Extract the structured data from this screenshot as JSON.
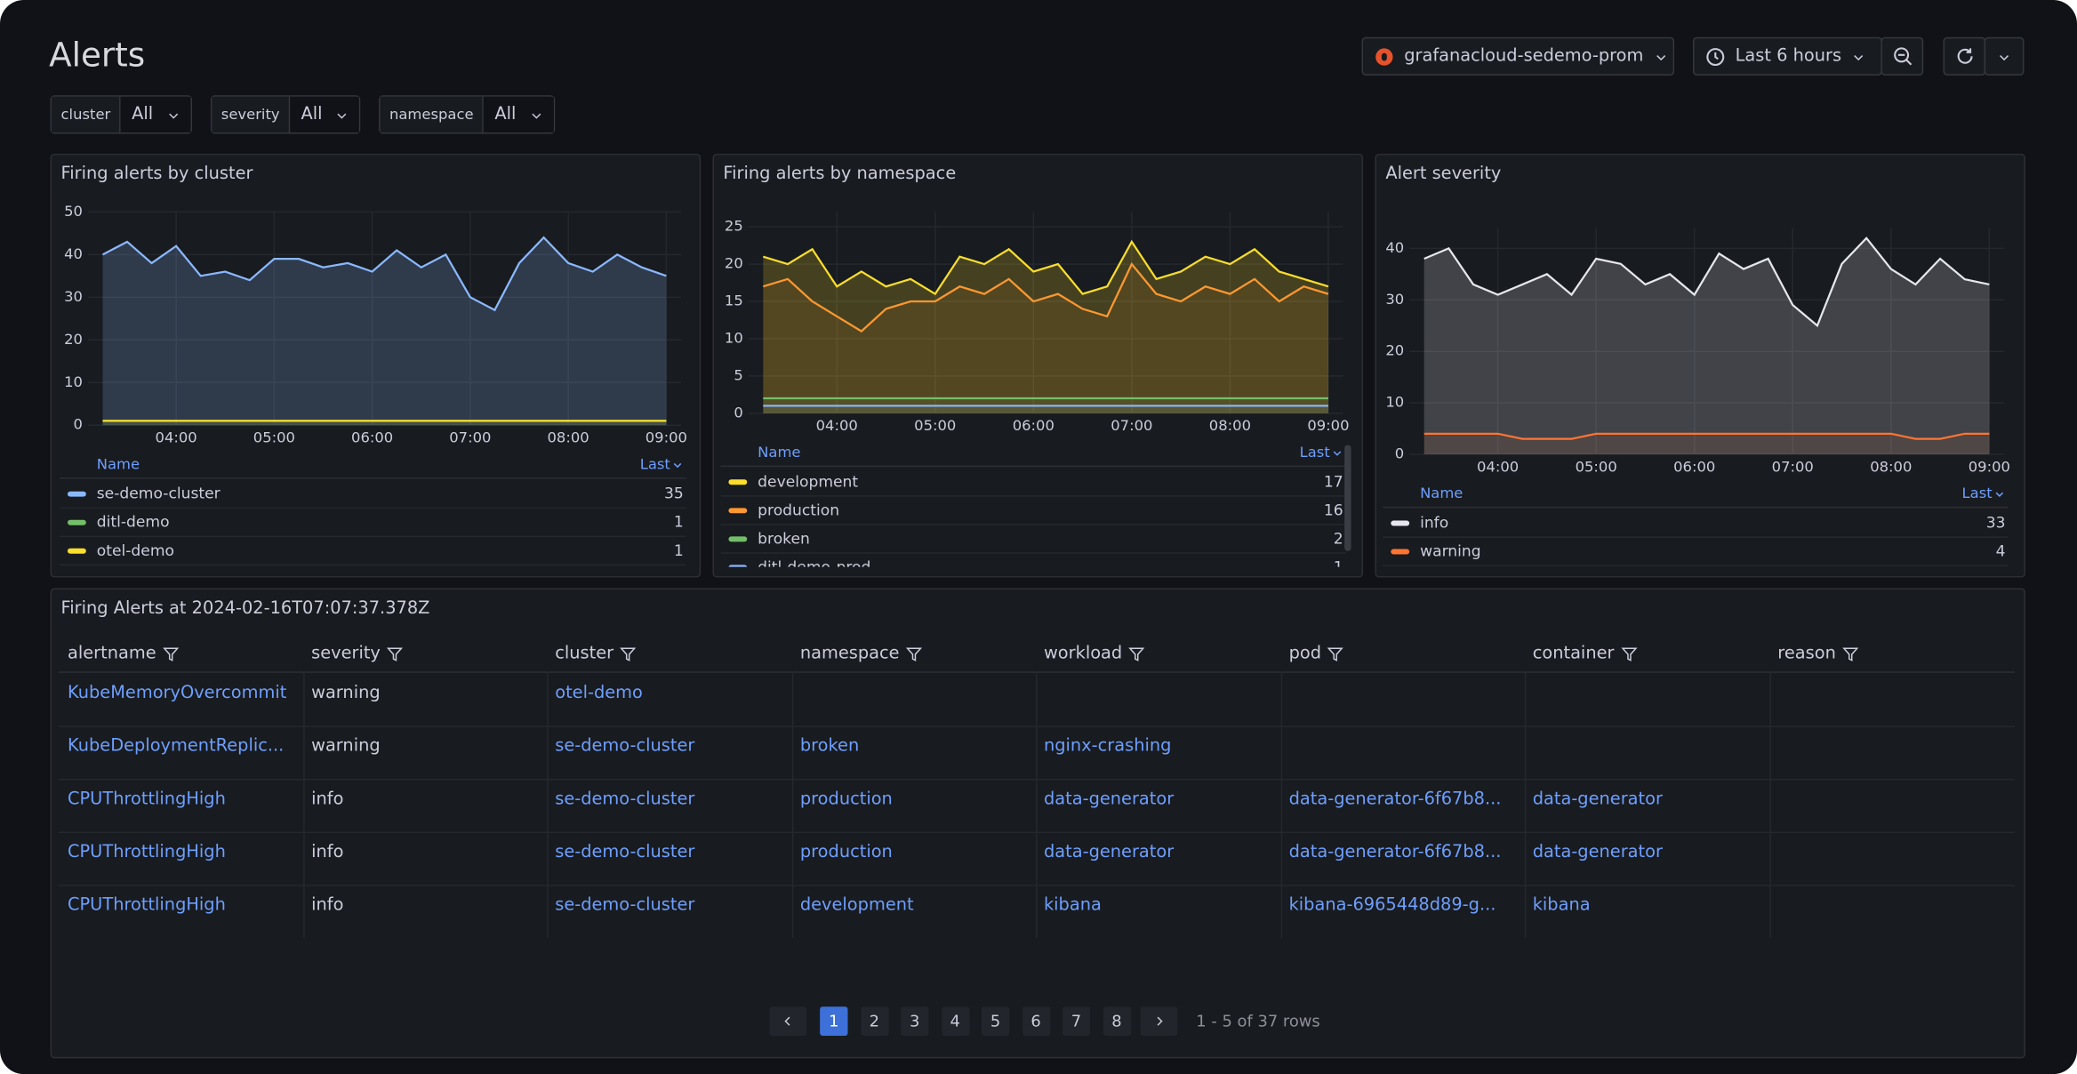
{
  "header": {
    "title": "Alerts",
    "datasource": "grafanacloud-sedemo-prom",
    "time_range": "Last 6 hours"
  },
  "filters": [
    {
      "label": "cluster",
      "value": "All"
    },
    {
      "label": "severity",
      "value": "All"
    },
    {
      "label": "namespace",
      "value": "All"
    }
  ],
  "chart_data": [
    {
      "type": "line",
      "title": "Firing alerts by cluster",
      "x": [
        "03:15",
        "03:30",
        "03:45",
        "04:00",
        "04:15",
        "04:30",
        "04:45",
        "05:00",
        "05:15",
        "05:30",
        "05:45",
        "06:00",
        "06:15",
        "06:30",
        "06:45",
        "07:00",
        "07:15",
        "07:30",
        "07:45",
        "08:00",
        "08:15",
        "08:30",
        "08:45",
        "09:00"
      ],
      "xticks": [
        "04:00",
        "05:00",
        "06:00",
        "07:00",
        "08:00",
        "09:00"
      ],
      "ylim": [
        0,
        50
      ],
      "yticks": [
        0,
        10,
        20,
        30,
        40,
        50
      ],
      "grid": true,
      "legend_columns": [
        "Name",
        "Last"
      ],
      "series": [
        {
          "name": "se-demo-cluster",
          "color": "#8ab8ff",
          "values": [
            40,
            43,
            38,
            42,
            35,
            36,
            34,
            39,
            39,
            37,
            38,
            36,
            41,
            37,
            40,
            30,
            27,
            38,
            44,
            38,
            36,
            40,
            37,
            35
          ]
        },
        {
          "name": "ditl-demo",
          "color": "#73bf69",
          "values": [
            1,
            1,
            1,
            1,
            1,
            1,
            1,
            1,
            1,
            1,
            1,
            1,
            1,
            1,
            1,
            1,
            1,
            1,
            1,
            1,
            1,
            1,
            1,
            1
          ]
        },
        {
          "name": "otel-demo",
          "color": "#fade2a",
          "values": [
            1,
            1,
            1,
            1,
            1,
            1,
            1,
            1,
            1,
            1,
            1,
            1,
            1,
            1,
            1,
            1,
            1,
            1,
            1,
            1,
            1,
            1,
            1,
            1
          ]
        }
      ]
    },
    {
      "type": "line",
      "title": "Firing alerts by namespace",
      "x": [
        "03:15",
        "03:30",
        "03:45",
        "04:00",
        "04:15",
        "04:30",
        "04:45",
        "05:00",
        "05:15",
        "05:30",
        "05:45",
        "06:00",
        "06:15",
        "06:30",
        "06:45",
        "07:00",
        "07:15",
        "07:30",
        "07:45",
        "08:00",
        "08:15",
        "08:30",
        "08:45",
        "09:00"
      ],
      "xticks": [
        "04:00",
        "05:00",
        "06:00",
        "07:00",
        "08:00",
        "09:00"
      ],
      "ylim": [
        0,
        27
      ],
      "yticks": [
        0,
        5,
        10,
        15,
        20,
        25
      ],
      "grid": true,
      "legend_columns": [
        "Name",
        "Last"
      ],
      "series": [
        {
          "name": "development",
          "color": "#fade2a",
          "values": [
            21,
            20,
            22,
            17,
            19,
            17,
            18,
            16,
            21,
            20,
            22,
            19,
            20,
            16,
            17,
            23,
            18,
            19,
            21,
            20,
            22,
            19,
            18,
            17
          ]
        },
        {
          "name": "production",
          "color": "#ff9830",
          "values": [
            17,
            18,
            15,
            13,
            11,
            14,
            15,
            15,
            17,
            16,
            18,
            15,
            16,
            14,
            13,
            20,
            16,
            15,
            17,
            16,
            18,
            15,
            17,
            16
          ]
        },
        {
          "name": "broken",
          "color": "#73bf69",
          "values": [
            2,
            2,
            2,
            2,
            2,
            2,
            2,
            2,
            2,
            2,
            2,
            2,
            2,
            2,
            2,
            2,
            2,
            2,
            2,
            2,
            2,
            2,
            2,
            2
          ]
        },
        {
          "name": "ditl-demo-prod",
          "color": "#8ab8ff",
          "values": [
            1,
            1,
            1,
            1,
            1,
            1,
            1,
            1,
            1,
            1,
            1,
            1,
            1,
            1,
            1,
            1,
            1,
            1,
            1,
            1,
            1,
            1,
            1,
            1
          ]
        }
      ]
    },
    {
      "type": "line",
      "title": "Alert severity",
      "x": [
        "03:15",
        "03:30",
        "03:45",
        "04:00",
        "04:15",
        "04:30",
        "04:45",
        "05:00",
        "05:15",
        "05:30",
        "05:45",
        "06:00",
        "06:15",
        "06:30",
        "06:45",
        "07:00",
        "07:15",
        "07:30",
        "07:45",
        "08:00",
        "08:15",
        "08:30",
        "08:45",
        "09:00"
      ],
      "xticks": [
        "04:00",
        "05:00",
        "06:00",
        "07:00",
        "08:00",
        "09:00"
      ],
      "ylim": [
        0,
        44
      ],
      "yticks": [
        0,
        10,
        20,
        30,
        40
      ],
      "grid": true,
      "legend_columns": [
        "Name",
        "Last"
      ],
      "series": [
        {
          "name": "info",
          "color": "#e6e6ee",
          "values": [
            38,
            40,
            33,
            31,
            33,
            35,
            31,
            38,
            37,
            33,
            35,
            31,
            39,
            36,
            38,
            29,
            25,
            37,
            42,
            36,
            33,
            38,
            34,
            33
          ]
        },
        {
          "name": "warning",
          "color": "#ff7433",
          "values": [
            4,
            4,
            4,
            4,
            3,
            3,
            3,
            4,
            4,
            4,
            4,
            4,
            4,
            4,
            4,
            4,
            4,
            4,
            4,
            4,
            3,
            3,
            4,
            4
          ]
        }
      ]
    }
  ],
  "table": {
    "title": "Firing Alerts at 2024-02-16T07:07:37.378Z",
    "columns": [
      "alertname",
      "severity",
      "cluster",
      "namespace",
      "workload",
      "pod",
      "container",
      "reason"
    ],
    "rows": [
      [
        "KubeMemoryOvercommit",
        "warning",
        "otel-demo",
        null,
        null,
        null,
        null,
        null
      ],
      [
        "KubeDeploymentReplic...",
        "warning",
        "se-demo-cluster",
        "broken",
        "nginx-crashing",
        null,
        null,
        null
      ],
      [
        "CPUThrottlingHigh",
        "info",
        "se-demo-cluster",
        "production",
        "data-generator",
        "data-generator-6f67b8...",
        "data-generator",
        null
      ],
      [
        "CPUThrottlingHigh",
        "info",
        "se-demo-cluster",
        "production",
        "data-generator",
        "data-generator-6f67b8...",
        "data-generator",
        null
      ],
      [
        "CPUThrottlingHigh",
        "info",
        "se-demo-cluster",
        "development",
        "kibana",
        "kibana-6965448d89-g...",
        "kibana",
        null
      ]
    ]
  },
  "pagination": {
    "pages": [
      1,
      2,
      3,
      4,
      5,
      6,
      7,
      8
    ],
    "current_page": 1,
    "summary": "1 - 5 of 37 rows"
  }
}
